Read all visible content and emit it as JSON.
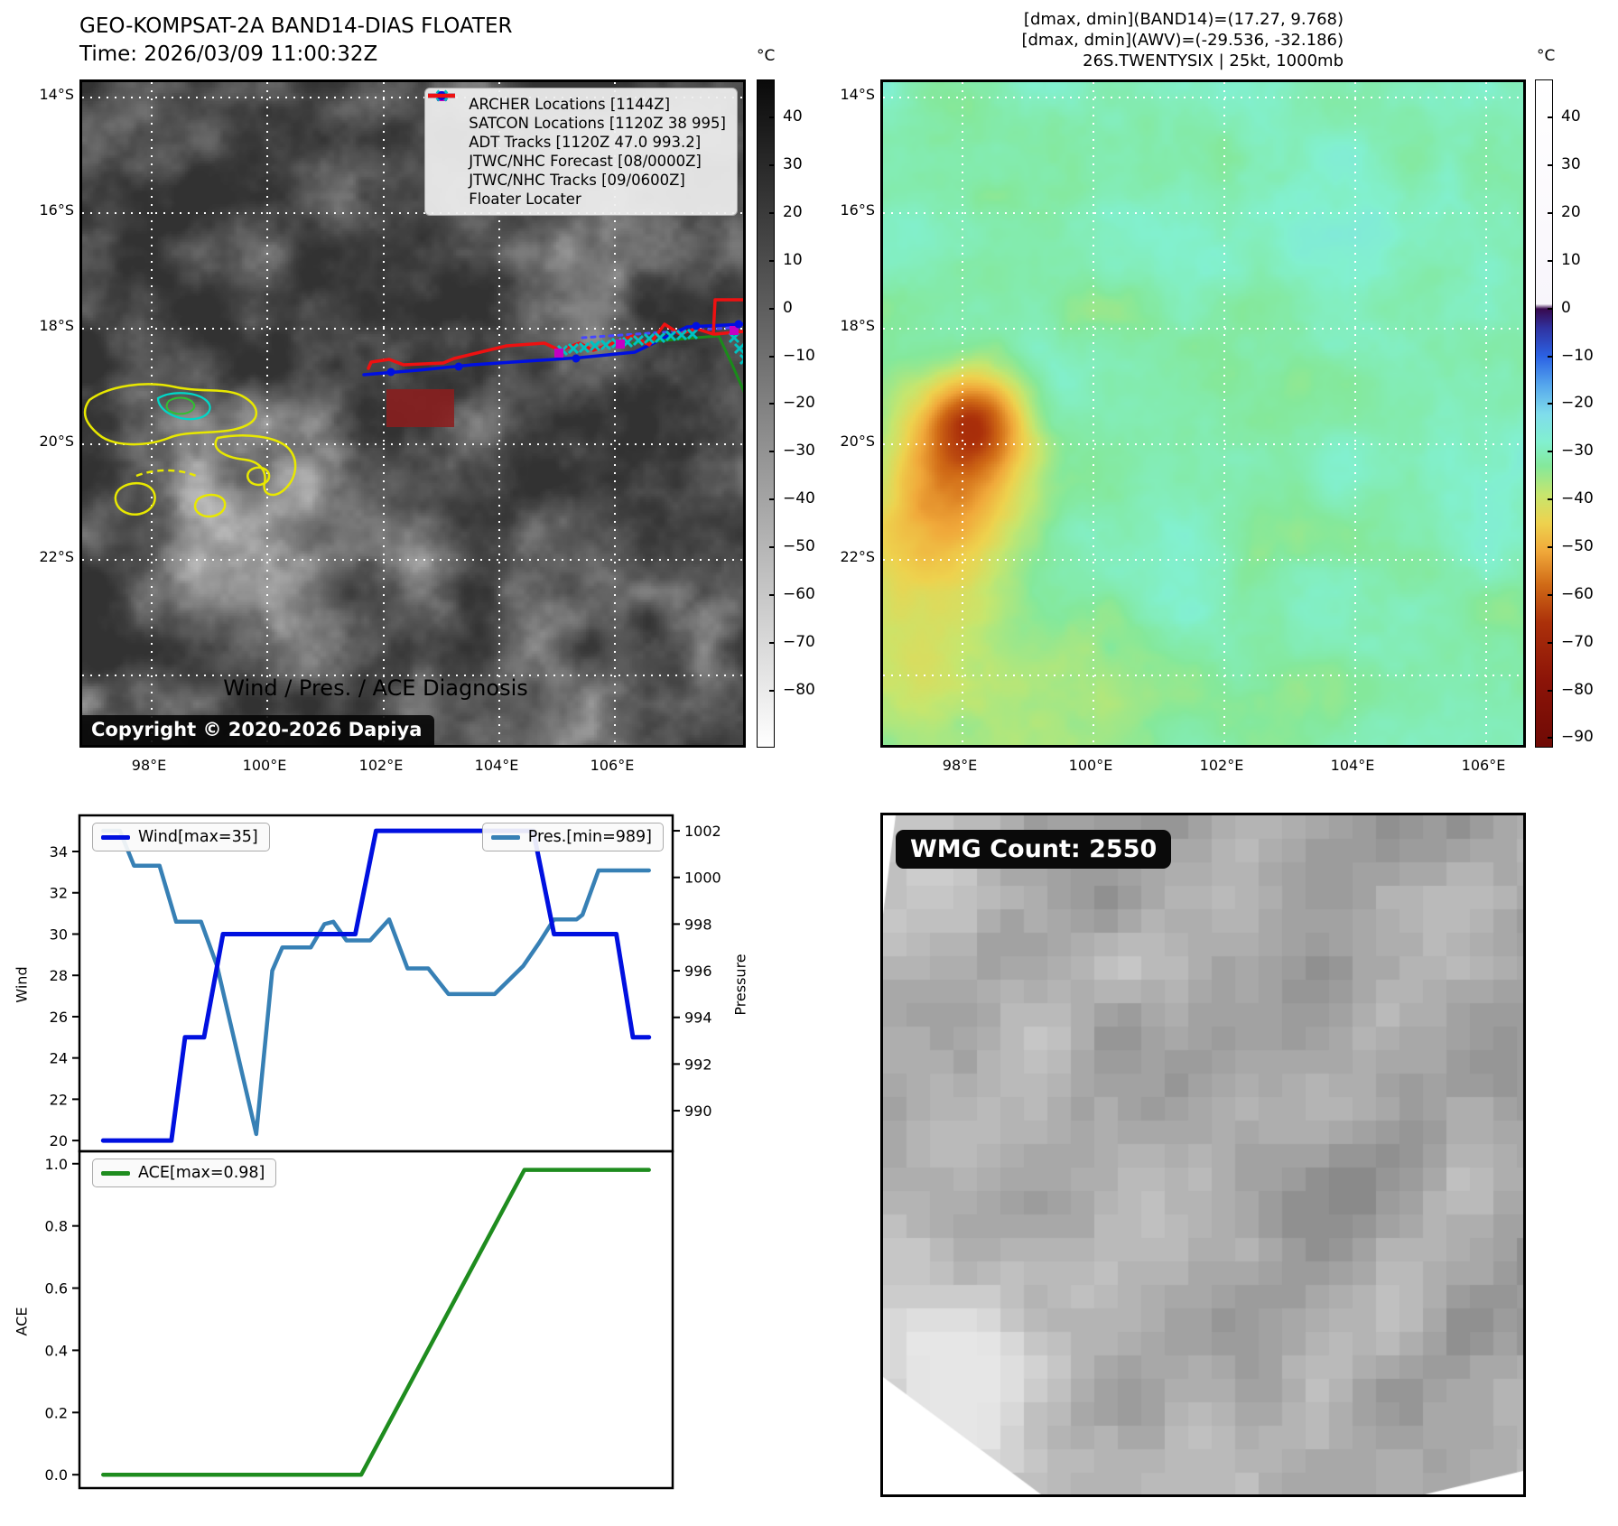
{
  "left_panel": {
    "title": "GEO-KOMPSAT-2A BAND14-DIAS FLOATER",
    "time": "Time: 2026/03/09 11:00:32Z",
    "lat_ticks": [
      "14°S",
      "16°S",
      "18°S",
      "20°S",
      "22°S"
    ],
    "lon_ticks": [
      "98°E",
      "100°E",
      "102°E",
      "104°E",
      "106°E"
    ],
    "copyright": "Copyright © 2020-2026 Dapiya",
    "legend": [
      {
        "label": "ARCHER Locations [1144Z]",
        "marker": "square",
        "color": "#c400c4"
      },
      {
        "label": "SATCON Locations [1120Z 38 995]",
        "marker": "x",
        "color": "#00c2c2"
      },
      {
        "label": "ADT Tracks [1120Z 47.0 993.2]",
        "marker": "line",
        "color": "#1a8c1a"
      },
      {
        "label": "JTWC/NHC Forecast [08/0000Z]",
        "marker": "dotted-line",
        "color": "#4646ff"
      },
      {
        "label": "JTWC/NHC Tracks [09/0600Z]",
        "marker": "line-circle",
        "color": "#0010e0"
      },
      {
        "label": "Floater Locater",
        "marker": "line",
        "color": "#ee1111"
      }
    ],
    "colorbar": {
      "unit": "°C",
      "tick_labels": [
        "40",
        "30",
        "20",
        "10",
        "0",
        "−10",
        "−20",
        "−30",
        "−40",
        "−50",
        "−60",
        "−70",
        "−80"
      ]
    }
  },
  "right_panel": {
    "annotation_line1": "[dmax, dmin](BAND14)=(17.27, 9.768)",
    "annotation_line2": "[dmax, dmin](AWV)=(-29.536, -32.186)",
    "annotation_line3": "26S.TWENTYSIX | 25kt, 1000mb",
    "lat_ticks": [
      "14°S",
      "16°S",
      "18°S",
      "20°S",
      "22°S"
    ],
    "lon_ticks": [
      "98°E",
      "100°E",
      "102°E",
      "104°E",
      "106°E"
    ],
    "colorbar": {
      "unit": "°C",
      "tick_labels": [
        "40",
        "30",
        "20",
        "10",
        "0",
        "−10",
        "−20",
        "−30",
        "−40",
        "−50",
        "−60",
        "−70",
        "−80",
        "−90"
      ]
    }
  },
  "diagnosis": {
    "title": "Wind / Pres. / ACE Diagnosis",
    "wind_legend": "Wind[max=35]",
    "pres_legend": "Pres.[min=989]",
    "ace_legend": "ACE[max=0.98]",
    "wind_axis_label": "Wind",
    "pres_axis_label": "Pressure",
    "ace_axis_label": "ACE",
    "wind_tick_labels": [
      "20",
      "22",
      "24",
      "26",
      "28",
      "30",
      "32",
      "34"
    ],
    "pres_tick_labels": [
      "990",
      "992",
      "994",
      "996",
      "998",
      "1000",
      "1002"
    ],
    "ace_tick_labels": [
      "0.0",
      "0.2",
      "0.4",
      "0.6",
      "0.8",
      "1.0"
    ]
  },
  "wmg": {
    "label": "WMG Count: 2550"
  },
  "chart_data": [
    {
      "type": "line",
      "title": "Wind / Pres. / ACE Diagnosis",
      "dual_y": true,
      "grid": false,
      "left_y": {
        "label": "Wind",
        "lim": [
          19.48,
          35.75
        ],
        "ticks": [
          20,
          22,
          24,
          26,
          28,
          30,
          32,
          34
        ]
      },
      "right_y": {
        "label": "Pressure",
        "lim": [
          988.26,
          1002.66
        ],
        "ticks": [
          990,
          992,
          994,
          996,
          998,
          1000,
          1002
        ]
      },
      "series": [
        {
          "name": "Wind[max=35]",
          "axis": "left",
          "color": "#0010e0",
          "points": [
            [
              0.04,
              20
            ],
            [
              0.155,
              20
            ],
            [
              0.178,
              25
            ],
            [
              0.21,
              25
            ],
            [
              0.242,
              30
            ],
            [
              0.465,
              30
            ],
            [
              0.5,
              35
            ],
            [
              0.765,
              35
            ],
            [
              0.8,
              30
            ],
            [
              0.905,
              30
            ],
            [
              0.933,
              25
            ],
            [
              0.96,
              25
            ]
          ]
        },
        {
          "name": "Pres.[min=989]",
          "axis": "right",
          "color": "#3780b5",
          "points": [
            [
              0.04,
              1002
            ],
            [
              0.068,
              1002
            ],
            [
              0.092,
              1000.5
            ],
            [
              0.135,
              1000.5
            ],
            [
              0.163,
              998.1
            ],
            [
              0.205,
              998.1
            ],
            [
              0.232,
              996.2
            ],
            [
              0.298,
              989.0
            ],
            [
              0.325,
              996.0
            ],
            [
              0.342,
              997.0
            ],
            [
              0.39,
              997.0
            ],
            [
              0.413,
              998.0
            ],
            [
              0.428,
              998.1
            ],
            [
              0.45,
              997.3
            ],
            [
              0.49,
              997.3
            ],
            [
              0.522,
              998.2
            ],
            [
              0.553,
              996.1
            ],
            [
              0.588,
              996.1
            ],
            [
              0.622,
              995.0
            ],
            [
              0.7,
              995.0
            ],
            [
              0.748,
              996.2
            ],
            [
              0.775,
              997.2
            ],
            [
              0.8,
              998.2
            ],
            [
              0.838,
              998.2
            ],
            [
              0.848,
              998.4
            ],
            [
              0.875,
              1000.3
            ],
            [
              0.96,
              1000.3
            ]
          ]
        }
      ]
    },
    {
      "type": "line",
      "grid": false,
      "left_y": {
        "label": "ACE",
        "lim": [
          -0.043,
          1.04
        ],
        "ticks": [
          0.0,
          0.2,
          0.4,
          0.6,
          0.8,
          1.0
        ]
      },
      "series": [
        {
          "name": "ACE[max=0.98]",
          "axis": "left",
          "color": "#1e8c1e",
          "points": [
            [
              0.04,
              0.0
            ],
            [
              0.475,
              0.0
            ],
            [
              0.75,
              0.98
            ],
            [
              0.96,
              0.98
            ]
          ]
        }
      ]
    }
  ],
  "map_overlay": {
    "floater_track": [
      [
        317,
        317
      ],
      [
        320,
        310
      ],
      [
        340,
        307
      ],
      [
        356,
        313
      ],
      [
        400,
        311
      ],
      [
        412,
        306
      ],
      [
        470,
        292
      ],
      [
        512,
        289
      ],
      [
        529,
        297
      ],
      [
        551,
        289
      ],
      [
        566,
        297
      ],
      [
        610,
        281
      ],
      [
        628,
        291
      ],
      [
        645,
        268
      ],
      [
        662,
        279
      ],
      [
        680,
        273
      ],
      [
        699,
        279
      ],
      [
        701,
        241
      ],
      [
        733,
        241
      ]
    ],
    "floater_track2": [
      [
        701,
        279
      ],
      [
        733,
        276
      ]
    ],
    "jtwc_track": [
      [
        312,
        324
      ],
      [
        372,
        319
      ],
      [
        432,
        313
      ],
      [
        492,
        309
      ],
      [
        552,
        305
      ],
      [
        612,
        299
      ],
      [
        670,
        271
      ],
      [
        733,
        268
      ]
    ],
    "jtwc_markers": [
      [
        342,
        321
      ],
      [
        417,
        315
      ],
      [
        547,
        306
      ],
      [
        680,
        270
      ],
      [
        727,
        268
      ]
    ],
    "jtwc_forecast": [
      [
        554,
        283
      ],
      [
        733,
        271
      ]
    ],
    "adt_track": [
      [
        610,
        289
      ],
      [
        680,
        283
      ],
      [
        705,
        281
      ],
      [
        720,
        313
      ],
      [
        734,
        345
      ]
    ],
    "satcon_points": [
      [
        532,
        297
      ],
      [
        544,
        295
      ],
      [
        556,
        294
      ],
      [
        568,
        292
      ],
      [
        580,
        291
      ],
      [
        592,
        289
      ],
      [
        604,
        288
      ],
      [
        616,
        286
      ],
      [
        628,
        284
      ],
      [
        640,
        283
      ],
      [
        652,
        281
      ],
      [
        664,
        280
      ],
      [
        676,
        279
      ],
      [
        722,
        283
      ],
      [
        728,
        295
      ],
      [
        734,
        307
      ]
    ],
    "archer_points": [
      [
        528,
        300
      ],
      [
        596,
        290
      ],
      [
        722,
        275
      ]
    ],
    "floater_box": [
      337,
      340,
      75,
      42
    ]
  }
}
